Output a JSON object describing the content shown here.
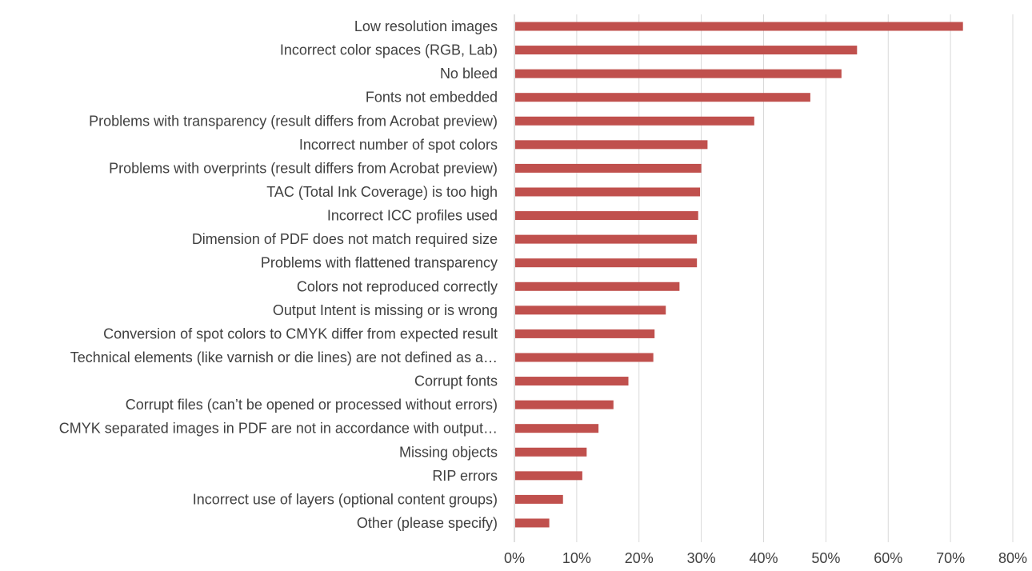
{
  "chart_data": {
    "type": "bar",
    "orientation": "horizontal",
    "categories": [
      "Low resolution images",
      "Incorrect color spaces (RGB, Lab)",
      "No bleed",
      "Fonts not embedded",
      "Problems with transparency (result differs from Acrobat preview)",
      "Incorrect number of spot colors",
      "Problems with overprints (result differs from Acrobat preview)",
      "TAC (Total Ink Coverage) is too high",
      "Incorrect ICC profiles used",
      "Dimension of PDF does not match required size",
      "Problems with flattened transparency",
      "Colors not reproduced correctly",
      "Output Intent is missing or is wrong",
      "Conversion of spot colors to CMYK differ from expected result",
      "Technical elements (like varnish or die lines) are not defined as a…",
      "Corrupt fonts",
      "Corrupt files (can’t be opened or processed without errors)",
      "CMYK separated images in PDF are not in accordance with output…",
      "Missing objects",
      "RIP errors",
      "Incorrect use of layers (optional content groups)",
      "Other (please specify)"
    ],
    "values": [
      72,
      55,
      52.5,
      47.5,
      38.5,
      31,
      30,
      29.8,
      29.5,
      29.3,
      29.3,
      26.5,
      24.3,
      22.5,
      22.3,
      18.3,
      15.9,
      13.5,
      11.6,
      10.9,
      7.8,
      5.6
    ],
    "x_ticks": [
      "0%",
      "10%",
      "20%",
      "30%",
      "40%",
      "50%",
      "60%",
      "70%",
      "80%"
    ],
    "xlim": [
      0,
      80
    ],
    "grid": true,
    "bar_color": "#c0504d",
    "title": "",
    "xlabel": "",
    "ylabel": ""
  }
}
